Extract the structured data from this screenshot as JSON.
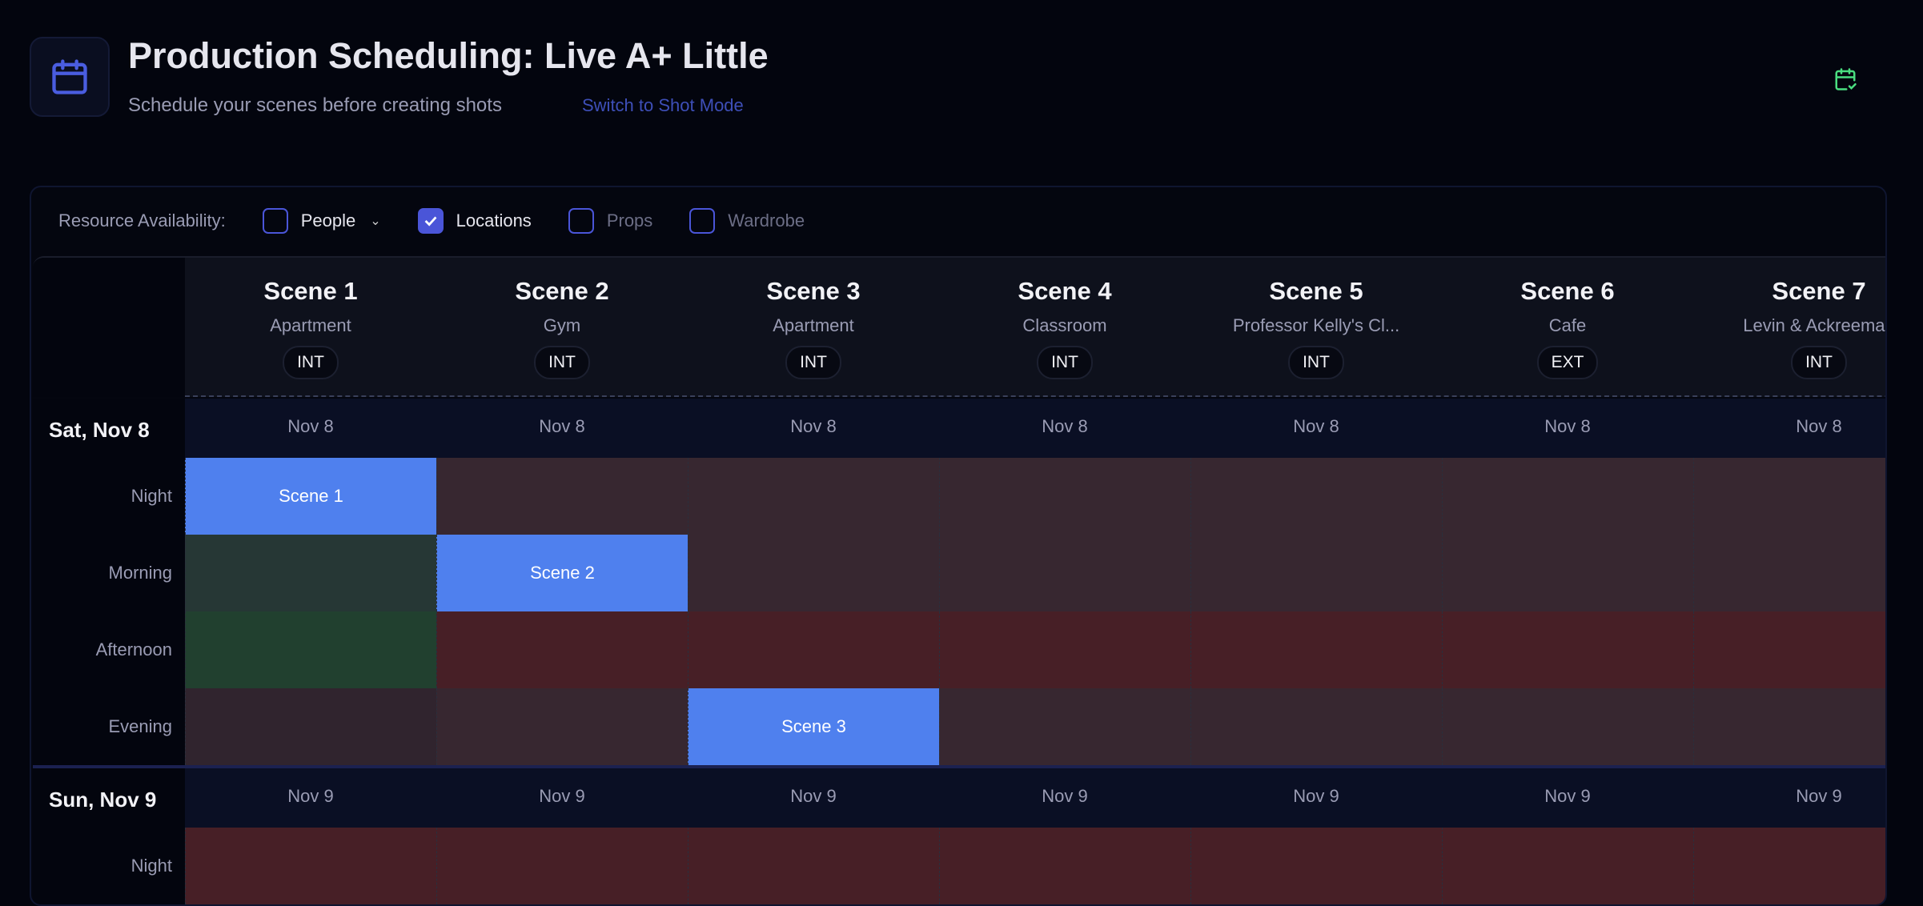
{
  "header": {
    "title": "Production Scheduling: Live A+ Little",
    "subtitle": "Schedule your scenes before creating shots",
    "switch_label": "Switch to Shot Mode",
    "icon": "calendar-icon",
    "status_icon": "calendar-check-icon"
  },
  "filters": {
    "label": "Resource Availability:",
    "items": [
      {
        "label": "People",
        "checked": false,
        "dropdown": true
      },
      {
        "label": "Locations",
        "checked": true
      },
      {
        "label": "Props",
        "checked": false
      },
      {
        "label": "Wardrobe",
        "checked": false
      }
    ]
  },
  "colors": {
    "accent": "#4a55d8",
    "scheduled": "#4f80ee",
    "available": "#21402f",
    "partial": "#263735",
    "unavailable": "#471f26",
    "conflict": "#372730",
    "muted": "#30242e"
  },
  "scenes": [
    {
      "name": "Scene 1",
      "location": "Apartment",
      "type": "INT"
    },
    {
      "name": "Scene 2",
      "location": "Gym",
      "type": "INT"
    },
    {
      "name": "Scene 3",
      "location": "Apartment",
      "type": "INT"
    },
    {
      "name": "Scene 4",
      "location": "Classroom",
      "type": "INT"
    },
    {
      "name": "Scene 5",
      "location": "Professor Kelly's Cl...",
      "type": "INT"
    },
    {
      "name": "Scene 6",
      "location": "Cafe",
      "type": "EXT"
    },
    {
      "name": "Scene 7",
      "location": "Levin & Ackreeman",
      "type": "INT"
    }
  ],
  "days": [
    {
      "label": "Sat, Nov 8",
      "short": "Nov 8",
      "slots": [
        {
          "name": "Night",
          "cells": [
            "Scene 1",
            "conflict",
            "conflict",
            "conflict",
            "conflict",
            "conflict",
            "conflict"
          ]
        },
        {
          "name": "Morning",
          "cells": [
            "partial",
            "Scene 2",
            "conflict",
            "conflict",
            "conflict",
            "conflict",
            "conflict"
          ]
        },
        {
          "name": "Afternoon",
          "cells": [
            "available",
            "unavailable",
            "unavailable",
            "unavailable",
            "unavailable",
            "unavailable",
            "unavailable"
          ]
        },
        {
          "name": "Evening",
          "cells": [
            "muted",
            "conflict",
            "Scene 3",
            "conflict",
            "conflict",
            "conflict",
            "conflict"
          ]
        }
      ]
    },
    {
      "label": "Sun, Nov 9",
      "short": "Nov 9",
      "slots": [
        {
          "name": "Night",
          "cells": [
            "unavailable",
            "unavailable",
            "unavailable",
            "unavailable",
            "unavailable",
            "unavailable",
            "unavailable"
          ]
        }
      ]
    }
  ]
}
